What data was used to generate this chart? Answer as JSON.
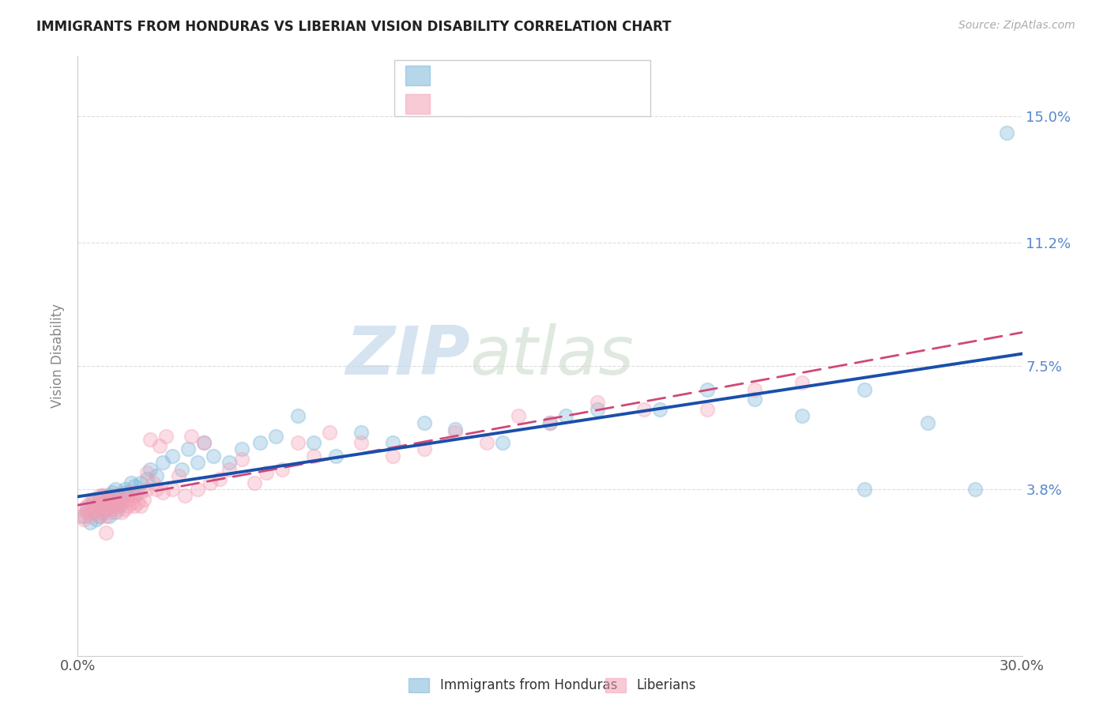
{
  "title": "IMMIGRANTS FROM HONDURAS VS LIBERIAN VISION DISABILITY CORRELATION CHART",
  "source": "Source: ZipAtlas.com",
  "ylabel": "Vision Disability",
  "ytick_labels": [
    "3.8%",
    "7.5%",
    "11.2%",
    "15.0%"
  ],
  "ytick_values": [
    0.038,
    0.075,
    0.112,
    0.15
  ],
  "xmin": 0.0,
  "xmax": 0.3,
  "ymin": -0.012,
  "ymax": 0.168,
  "legend_label_blue": "Immigrants from Honduras",
  "legend_label_pink": "Liberians",
  "blue_color": "#7ab5d9",
  "pink_color": "#f4a0b5",
  "blue_line_color": "#1a4faa",
  "pink_line_color": "#d04878",
  "watermark_zip": "ZIP",
  "watermark_atlas": "atlas",
  "blue_x": [
    0.002,
    0.003,
    0.004,
    0.004,
    0.005,
    0.005,
    0.006,
    0.006,
    0.007,
    0.007,
    0.008,
    0.008,
    0.009,
    0.009,
    0.01,
    0.01,
    0.011,
    0.011,
    0.012,
    0.012,
    0.013,
    0.013,
    0.014,
    0.015,
    0.015,
    0.016,
    0.017,
    0.018,
    0.019,
    0.02,
    0.022,
    0.023,
    0.025,
    0.027,
    0.03,
    0.033,
    0.035,
    0.038,
    0.04,
    0.043,
    0.048,
    0.052,
    0.058,
    0.063,
    0.07,
    0.075,
    0.082,
    0.09,
    0.1,
    0.11,
    0.12,
    0.135,
    0.15,
    0.165,
    0.185,
    0.2,
    0.215,
    0.23,
    0.25,
    0.27,
    0.155,
    0.25,
    0.285,
    0.295
  ],
  "blue_y": [
    0.03,
    0.032,
    0.028,
    0.033,
    0.031,
    0.034,
    0.029,
    0.033,
    0.03,
    0.035,
    0.031,
    0.036,
    0.032,
    0.034,
    0.03,
    0.036,
    0.033,
    0.037,
    0.031,
    0.038,
    0.033,
    0.036,
    0.034,
    0.037,
    0.038,
    0.036,
    0.04,
    0.039,
    0.037,
    0.04,
    0.041,
    0.044,
    0.042,
    0.046,
    0.048,
    0.044,
    0.05,
    0.046,
    0.052,
    0.048,
    0.046,
    0.05,
    0.052,
    0.054,
    0.06,
    0.052,
    0.048,
    0.055,
    0.052,
    0.058,
    0.056,
    0.052,
    0.058,
    0.062,
    0.062,
    0.068,
    0.065,
    0.06,
    0.068,
    0.058,
    0.06,
    0.038,
    0.038,
    0.145
  ],
  "pink_x": [
    0.001,
    0.002,
    0.002,
    0.003,
    0.003,
    0.004,
    0.004,
    0.005,
    0.005,
    0.006,
    0.006,
    0.007,
    0.007,
    0.007,
    0.008,
    0.008,
    0.008,
    0.009,
    0.009,
    0.01,
    0.01,
    0.01,
    0.011,
    0.011,
    0.012,
    0.012,
    0.013,
    0.013,
    0.014,
    0.014,
    0.015,
    0.015,
    0.016,
    0.016,
    0.017,
    0.017,
    0.018,
    0.018,
    0.019,
    0.02,
    0.02,
    0.021,
    0.022,
    0.022,
    0.023,
    0.024,
    0.025,
    0.026,
    0.027,
    0.028,
    0.03,
    0.032,
    0.034,
    0.036,
    0.038,
    0.04,
    0.042,
    0.045,
    0.048,
    0.052,
    0.056,
    0.06,
    0.065,
    0.07,
    0.075,
    0.08,
    0.09,
    0.1,
    0.11,
    0.12,
    0.13,
    0.14,
    0.15,
    0.165,
    0.18,
    0.2,
    0.215,
    0.23,
    0.009
  ],
  "pink_y": [
    0.03,
    0.029,
    0.032,
    0.031,
    0.033,
    0.03,
    0.034,
    0.031,
    0.035,
    0.032,
    0.033,
    0.03,
    0.034,
    0.036,
    0.031,
    0.033,
    0.036,
    0.03,
    0.035,
    0.031,
    0.033,
    0.036,
    0.032,
    0.035,
    0.033,
    0.036,
    0.032,
    0.034,
    0.031,
    0.035,
    0.032,
    0.036,
    0.033,
    0.035,
    0.034,
    0.037,
    0.033,
    0.036,
    0.034,
    0.033,
    0.037,
    0.035,
    0.043,
    0.038,
    0.053,
    0.04,
    0.038,
    0.051,
    0.037,
    0.054,
    0.038,
    0.042,
    0.036,
    0.054,
    0.038,
    0.052,
    0.04,
    0.041,
    0.044,
    0.047,
    0.04,
    0.043,
    0.044,
    0.052,
    0.048,
    0.055,
    0.052,
    0.048,
    0.05,
    0.055,
    0.052,
    0.06,
    0.058,
    0.064,
    0.062,
    0.062,
    0.068,
    0.07,
    0.025
  ]
}
